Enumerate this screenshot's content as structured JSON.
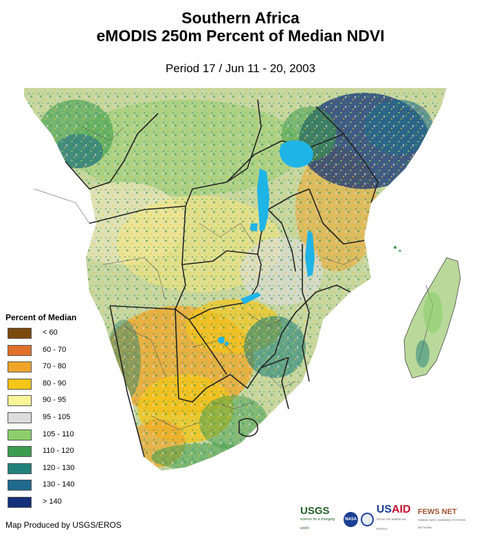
{
  "header": {
    "title_line1": "Southern Africa",
    "title_line2": "eMODIS 250m Percent of Median NDVI",
    "period": "Period 17 / Jun 11 - 20, 2003"
  },
  "legend": {
    "title": "Percent of Median",
    "items": [
      {
        "label": "< 60",
        "color": "#7a4a0f"
      },
      {
        "label": "60 - 70",
        "color": "#e0702a"
      },
      {
        "label": "70 - 80",
        "color": "#f0a52a"
      },
      {
        "label": "80 - 90",
        "color": "#f5c518"
      },
      {
        "label": "90 - 95",
        "color": "#fbf59a"
      },
      {
        "label": "95 - 105",
        "color": "#dcdcdc"
      },
      {
        "label": "105 - 110",
        "color": "#8ccf6a"
      },
      {
        "label": "110 - 120",
        "color": "#3c9c4f"
      },
      {
        "label": "120 - 130",
        "color": "#22807a"
      },
      {
        "label": "130 - 140",
        "color": "#1f6a8e"
      },
      {
        "label": "> 140",
        "color": "#13307a"
      }
    ]
  },
  "credit": "Map Produced by USGS/EROS",
  "logos": {
    "usgs": "USGS",
    "usgs_tagline": "science for a changing world",
    "nasa": "NASA",
    "usaid_us": "US",
    "usaid_aid": "AID",
    "usaid_tagline": "FROM THE AMERICAN PEOPLE",
    "fews": "FEWS NET",
    "fews_tagline": "FAMINE EARLY WARNING SYSTEMS NETWORK"
  },
  "map_labels": {
    "water_color": "#1fb4e6",
    "ocean_color": "#ffffff"
  }
}
